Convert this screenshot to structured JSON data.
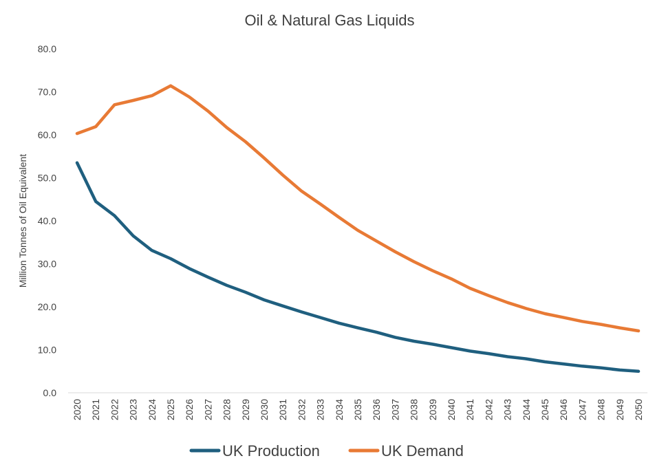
{
  "chart_data": {
    "type": "line",
    "title": "Oil & Natural Gas Liquids",
    "xlabel": "",
    "ylabel": "Million Tonnes of Oil Equivalent",
    "ylim": [
      0,
      80
    ],
    "yticks": [
      "0.0",
      "10.0",
      "20.0",
      "30.0",
      "40.0",
      "50.0",
      "60.0",
      "70.0",
      "80.0"
    ],
    "grid": false,
    "legend_position": "bottom",
    "x": [
      "2020",
      "2021",
      "2022",
      "2023",
      "2024",
      "2025",
      "2026",
      "2027",
      "2028",
      "2029",
      "2030",
      "2031",
      "2032",
      "2033",
      "2034",
      "2035",
      "2036",
      "2037",
      "2038",
      "2039",
      "2040",
      "2041",
      "2042",
      "2043",
      "2044",
      "2045",
      "2046",
      "2047",
      "2048",
      "2049",
      "2050"
    ],
    "series": [
      {
        "name": "UK Production",
        "color": "#1f5f7f",
        "values": [
          53.5,
          44.5,
          41.2,
          36.5,
          33.1,
          31.2,
          28.9,
          26.9,
          25.0,
          23.4,
          21.6,
          20.2,
          18.8,
          17.5,
          16.2,
          15.1,
          14.1,
          12.9,
          12.0,
          11.3,
          10.5,
          9.7,
          9.1,
          8.4,
          7.9,
          7.2,
          6.7,
          6.2,
          5.8,
          5.3,
          5.0
        ]
      },
      {
        "name": "UK Demand",
        "color": "#e87a35",
        "values": [
          60.3,
          61.9,
          67.0,
          68.0,
          69.1,
          71.4,
          68.8,
          65.5,
          61.7,
          58.4,
          54.6,
          50.6,
          46.9,
          43.9,
          40.8,
          37.8,
          35.3,
          32.8,
          30.5,
          28.4,
          26.5,
          24.3,
          22.6,
          21.0,
          19.6,
          18.4,
          17.5,
          16.6,
          15.9,
          15.1,
          14.4
        ]
      }
    ]
  }
}
